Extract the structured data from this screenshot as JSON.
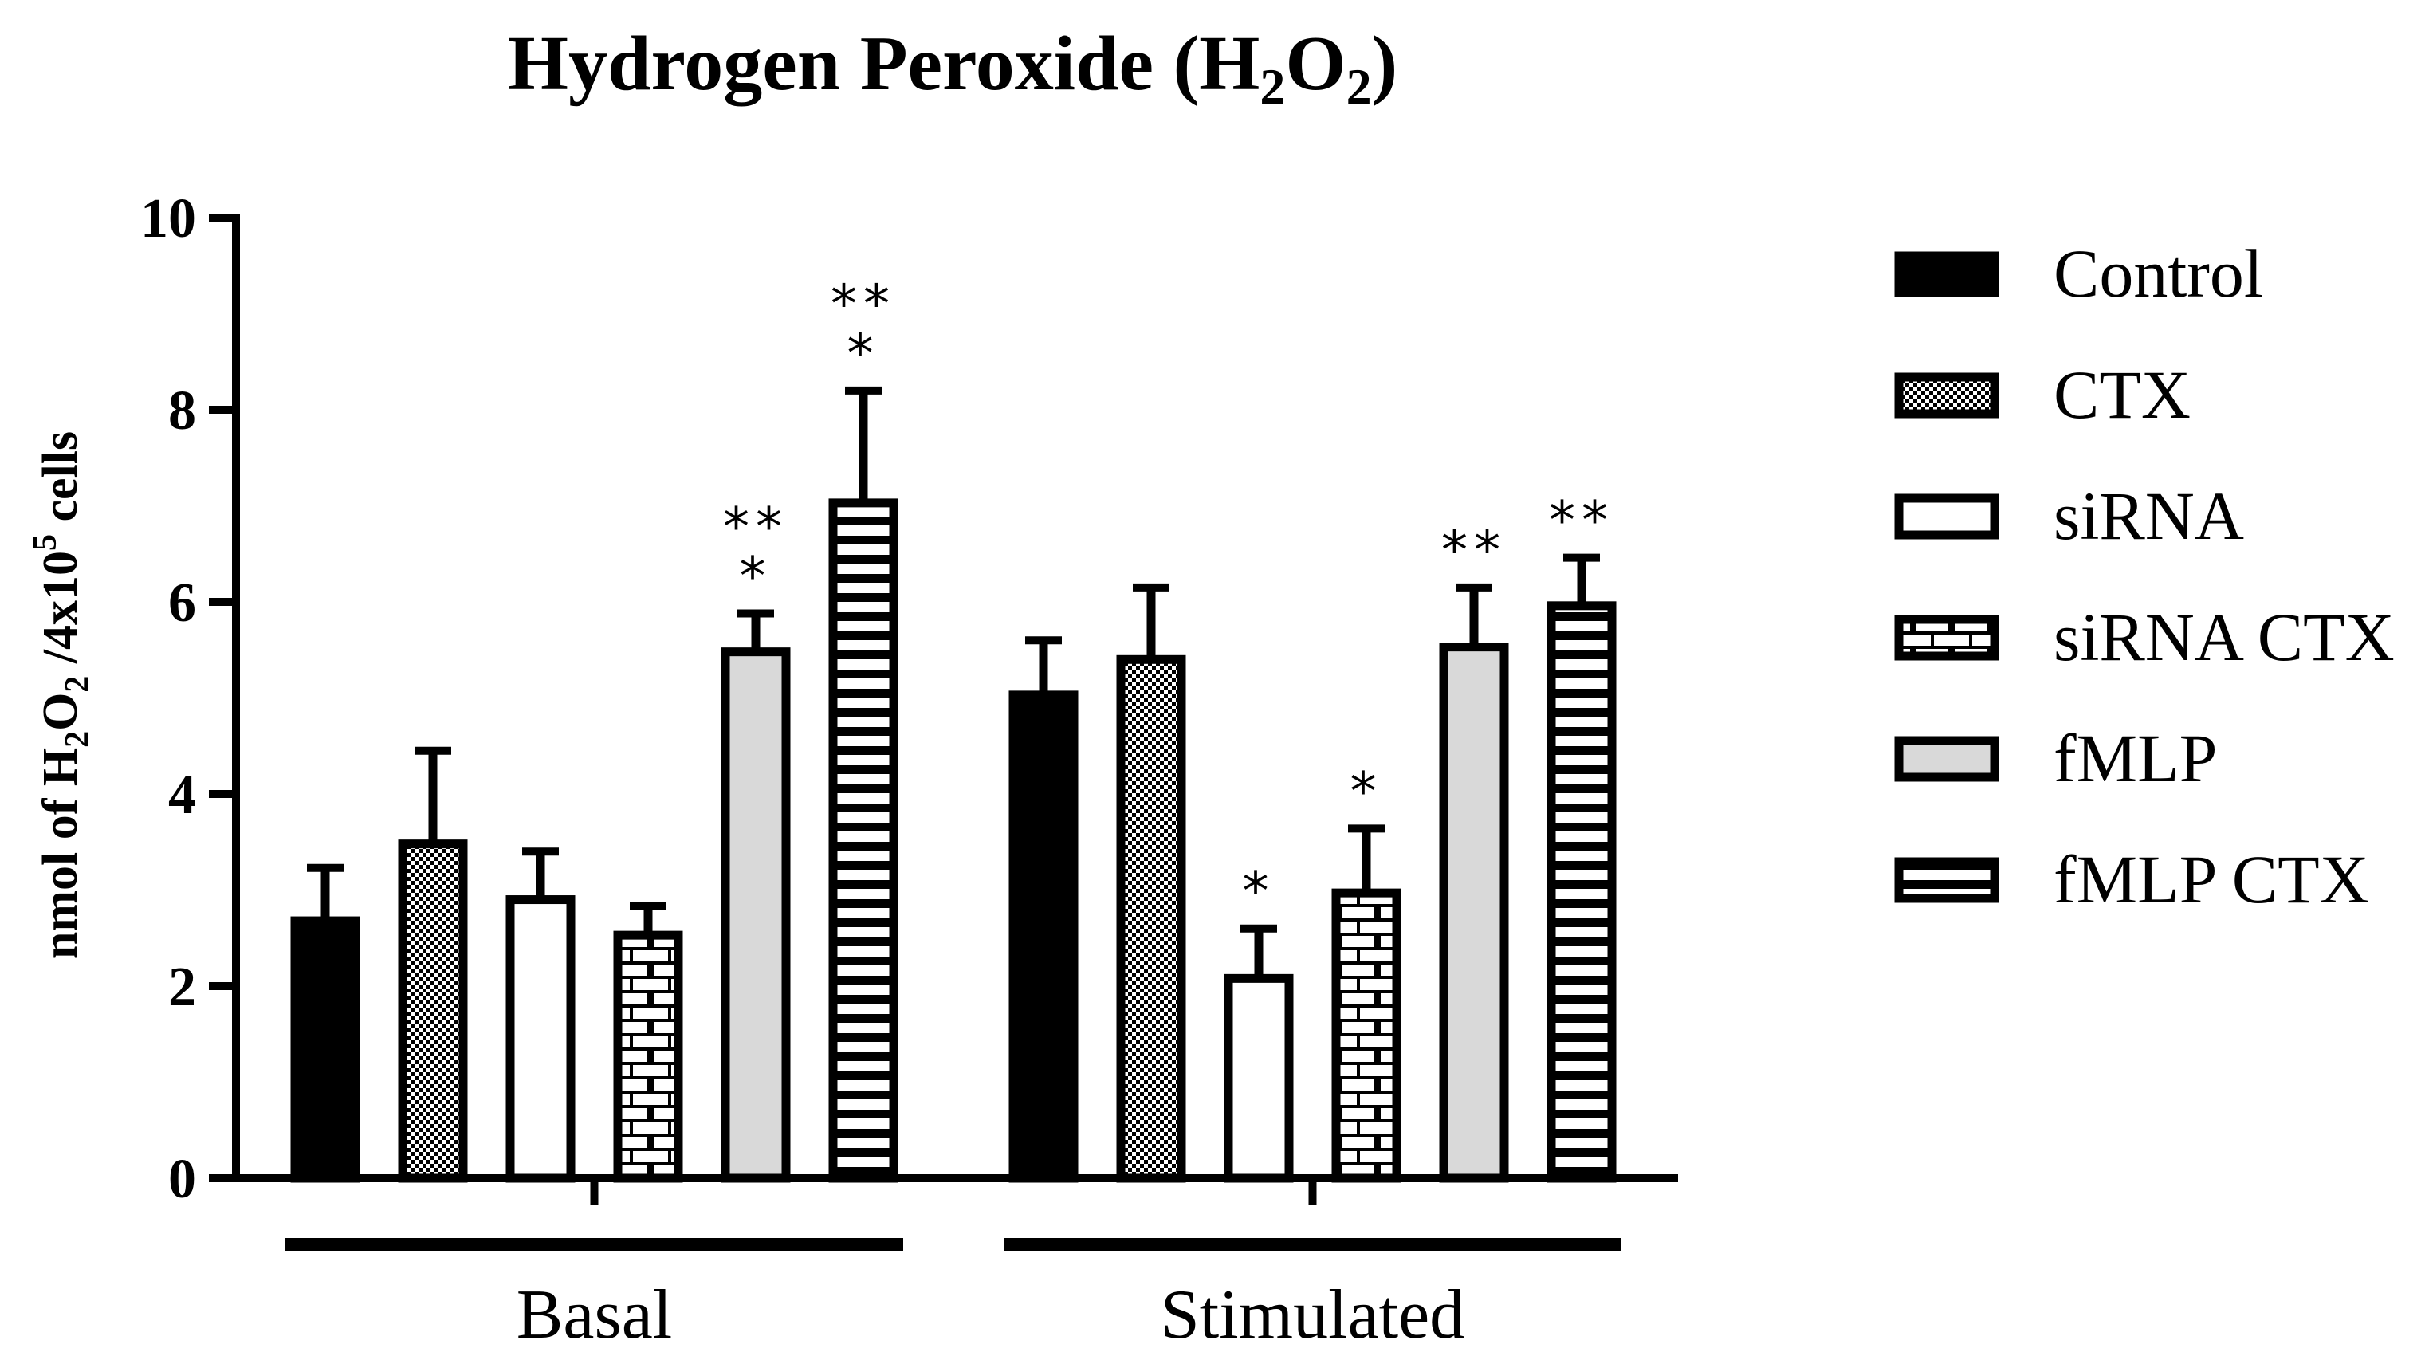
{
  "chart_data": {
    "type": "bar",
    "title_parts": [
      "Hydrogen Peroxide (H",
      "2",
      "O",
      "2",
      ")"
    ],
    "ylabel_parts": [
      "nmol of H",
      "2",
      "O",
      "2",
      " /4x10",
      "5",
      " cells"
    ],
    "ylim": [
      0,
      10
    ],
    "yticks": [
      0,
      2,
      4,
      6,
      8,
      10
    ],
    "ytick_labels": [
      "0",
      "2",
      "4",
      "6",
      "8",
      "10"
    ],
    "grid": false,
    "legend_position": "right",
    "categories": [
      "Basal",
      "Stimulated"
    ],
    "series": [
      {
        "name": "Control",
        "pattern": "solid",
        "values": [
          2.68,
          5.03
        ],
        "errors": [
          0.55,
          0.57
        ],
        "sig": [
          "",
          ""
        ]
      },
      {
        "name": "CTX",
        "pattern": "checker",
        "values": [
          3.48,
          5.4
        ],
        "errors": [
          0.97,
          0.75
        ],
        "sig": [
          "",
          ""
        ]
      },
      {
        "name": "siRNA",
        "pattern": "white",
        "values": [
          2.9,
          2.08
        ],
        "errors": [
          0.5,
          0.52
        ],
        "sig": [
          "",
          "*"
        ]
      },
      {
        "name": "siRNA CTX",
        "pattern": "brick",
        "values": [
          2.53,
          2.97
        ],
        "errors": [
          0.3,
          0.67
        ],
        "sig": [
          "",
          "*"
        ]
      },
      {
        "name": "fMLP",
        "pattern": "gray",
        "values": [
          5.48,
          5.53
        ],
        "errors": [
          0.4,
          0.62
        ],
        "sig": [
          "**\n*",
          "**"
        ]
      },
      {
        "name": "fMLP CTX",
        "pattern": "hstripes",
        "values": [
          7.03,
          5.96
        ],
        "errors": [
          1.17,
          0.5
        ],
        "sig": [
          "**\n*",
          "**"
        ]
      }
    ],
    "colors": {
      "bar_edge": "#000000",
      "gray_fill": "#d9d9d9",
      "background": "#ffffff"
    }
  }
}
